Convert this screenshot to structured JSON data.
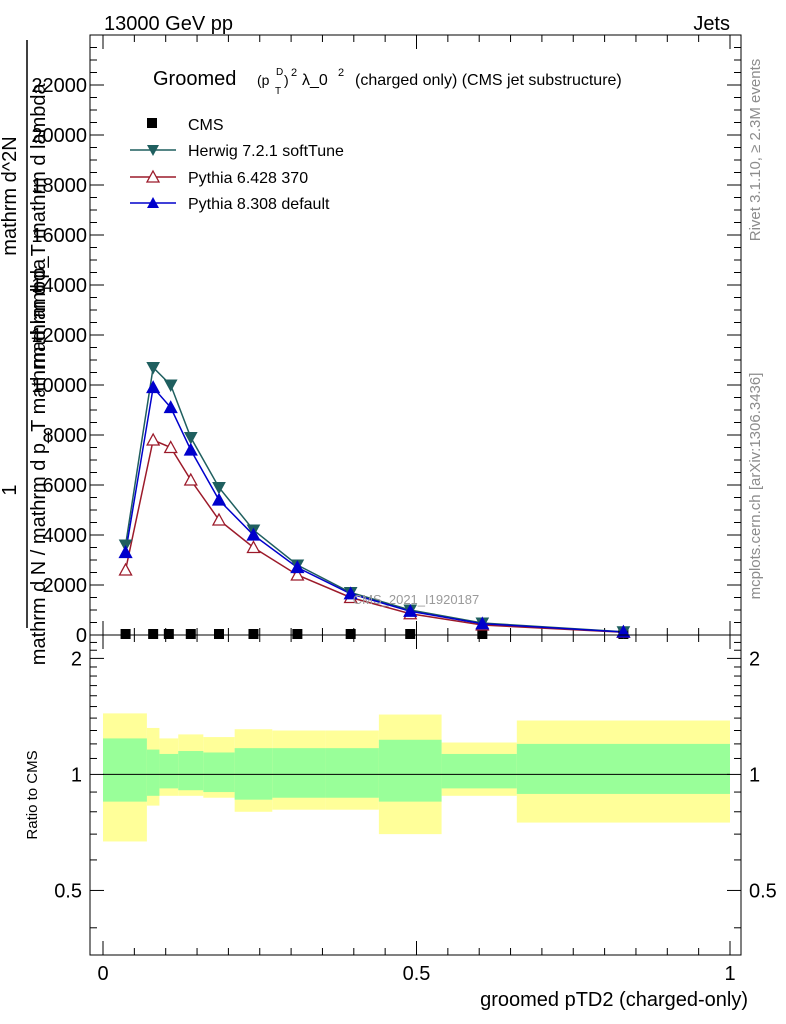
{
  "header": {
    "energy_label": "13000 GeV pp",
    "category_label": "Jets"
  },
  "side_labels": {
    "rivet": "Rivet 3.1.10, ≥ 2.3M events",
    "mcplots": "mcplots.cern.ch [arXiv:1306.3436]"
  },
  "watermark": "CMS_2021_I1920187",
  "legend": {
    "cms": "CMS",
    "herwig": "Herwig 7.2.1 softTune",
    "py6": "Pythia 6.428 370",
    "py8": "Pythia 8.308 default"
  },
  "colors": {
    "cms": "#000000",
    "herwig": "#1f5f5f",
    "py6": "#9c1a2a",
    "py8": "#0000cc",
    "band_inner": "#99ff99",
    "band_outer": "#ffff99"
  },
  "chart_data": [
    {
      "type": "line",
      "title": "Groomed (p_T^D)^2 λ_0^2 (charged only) (CMS jet substructure)",
      "title_word": "Groomed",
      "title_sym": "λ_0",
      "title_rest": "(charged only) (CMS jet substructure)",
      "ylabel_top": "mathrm d^2N",
      "ylabel_line1": "mathrm d p_T mathrm d lambda",
      "ylabel_line2": "mathrm d N / mathrm d p_T mathrm d lambda",
      "ylabel_one": "1",
      "xlim": [
        0,
        1
      ],
      "ylim": [
        0,
        24000
      ],
      "yticks": [
        0,
        2000,
        4000,
        6000,
        8000,
        10000,
        12000,
        14000,
        16000,
        18000,
        20000,
        22000
      ],
      "ytick_labels": [
        "0",
        "2000",
        "4000",
        "6000",
        "8000",
        "10000",
        "12000",
        "14000",
        "16000",
        "18000",
        "20000",
        "22000"
      ],
      "series": [
        {
          "name": "CMS",
          "x": [
            0.036,
            0.08,
            0.105,
            0.14,
            0.185,
            0.24,
            0.31,
            0.395,
            0.49,
            0.605,
            0.83
          ],
          "values": [
            40,
            40,
            40,
            40,
            40,
            40,
            40,
            40,
            40,
            40,
            40
          ]
        },
        {
          "name": "Herwig 7.2.1 softTune",
          "x": [
            0.036,
            0.08,
            0.108,
            0.14,
            0.185,
            0.24,
            0.31,
            0.395,
            0.49,
            0.605,
            0.83
          ],
          "values": [
            3600,
            10700,
            10000,
            7900,
            5900,
            4200,
            2800,
            1700,
            1000,
            480,
            130
          ]
        },
        {
          "name": "Pythia 6.428 370",
          "x": [
            0.036,
            0.08,
            0.108,
            0.14,
            0.185,
            0.24,
            0.31,
            0.395,
            0.49,
            0.605,
            0.83
          ],
          "values": [
            2600,
            7800,
            7500,
            6200,
            4600,
            3500,
            2400,
            1500,
            850,
            400,
            110
          ]
        },
        {
          "name": "Pythia 8.308 default",
          "x": [
            0.036,
            0.08,
            0.108,
            0.14,
            0.185,
            0.24,
            0.31,
            0.395,
            0.49,
            0.605,
            0.83
          ],
          "values": [
            3300,
            9900,
            9100,
            7400,
            5400,
            4000,
            2700,
            1650,
            950,
            450,
            120
          ]
        }
      ]
    },
    {
      "type": "area",
      "ylabel": "Ratio to CMS",
      "xlabel": "groomed pTD2 (charged-only)",
      "xlim": [
        0,
        1
      ],
      "ylim": [
        0.34,
        2.3
      ],
      "xticks": [
        0,
        0.5,
        1
      ],
      "xtick_labels": [
        "0",
        "0.5",
        "1"
      ],
      "yticks": [
        0.5,
        1,
        2
      ],
      "ytick_labels": [
        "0.5",
        "1",
        "2"
      ],
      "bin_edges": [
        0.0,
        0.07,
        0.09,
        0.12,
        0.16,
        0.21,
        0.27,
        0.355,
        0.44,
        0.54,
        0.66,
        1.0
      ],
      "band_outer_upper": [
        1.44,
        1.32,
        1.24,
        1.27,
        1.25,
        1.31,
        1.3,
        1.3,
        1.43,
        1.21,
        1.38
      ],
      "band_outer_lower": [
        0.67,
        0.83,
        0.88,
        0.88,
        0.87,
        0.8,
        0.81,
        0.81,
        0.7,
        0.88,
        0.75
      ],
      "band_inner_upper": [
        1.24,
        1.16,
        1.13,
        1.15,
        1.14,
        1.17,
        1.17,
        1.17,
        1.23,
        1.13,
        1.2
      ],
      "band_inner_lower": [
        0.85,
        0.88,
        0.92,
        0.91,
        0.9,
        0.86,
        0.87,
        0.87,
        0.85,
        0.92,
        0.89
      ]
    }
  ]
}
